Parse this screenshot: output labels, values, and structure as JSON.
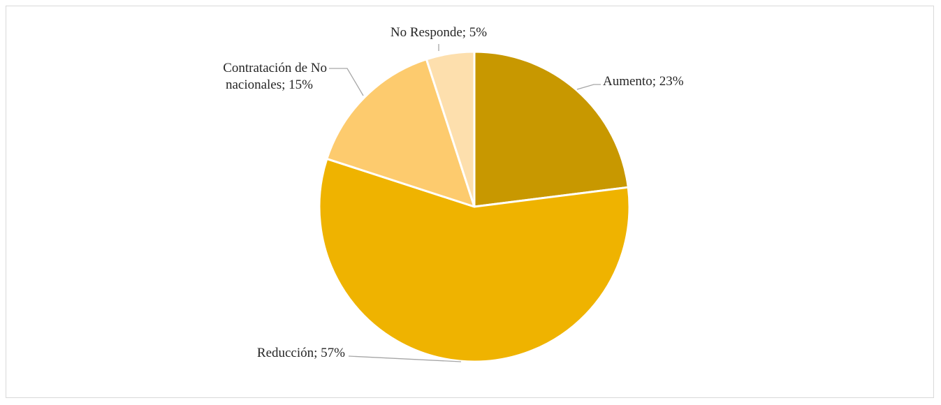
{
  "chart_data": {
    "type": "pie",
    "start_angle_deg": 0,
    "direction": "clockwise",
    "slices": [
      {
        "label": "Aumento",
        "value": 23,
        "value_text": "23%",
        "color": "#C89800"
      },
      {
        "label": "Reducción",
        "value": 57,
        "value_text": "57%",
        "color": "#EFB300"
      },
      {
        "label": "Contratación de No nacionales",
        "label_lines": [
          "Contratación de No",
          "nacionales; 15%"
        ],
        "value": 15,
        "value_text": "15%",
        "color": "#FDCB6E"
      },
      {
        "label": "No Responde",
        "value": 5,
        "value_text": "5%",
        "color": "#FDDFAD"
      }
    ],
    "data_labels": {
      "format": "{label}; {value_text}",
      "aumento": "Aumento; 23%",
      "reduccion": "Reducción; 57%",
      "contratacion_line1": "Contratación de No",
      "contratacion_line2": "nacionales; 15%",
      "no_responde": "No Responde; 5%"
    },
    "leader_line_color": "#A6A6A6",
    "border_color": "#D9D9D9"
  }
}
